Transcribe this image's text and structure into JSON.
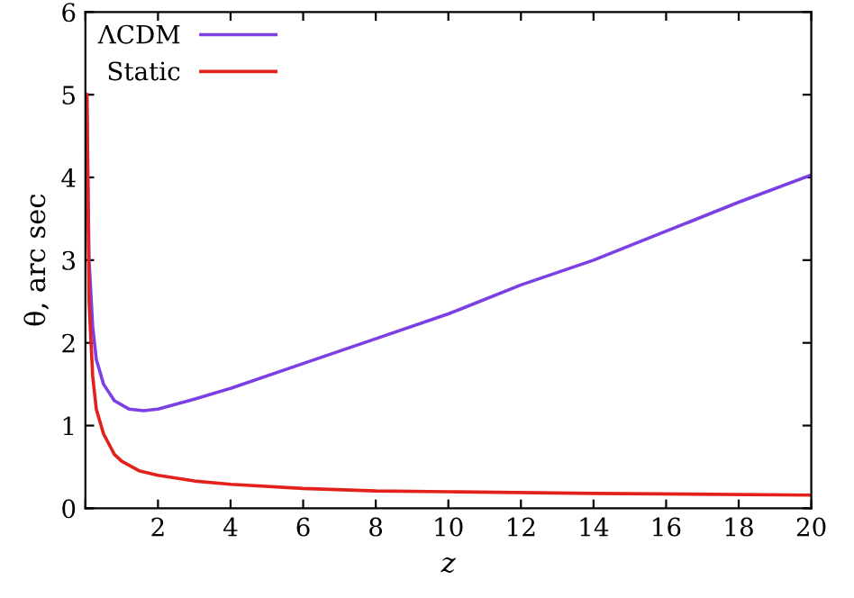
{
  "chart_data": {
    "type": "line",
    "xlabel": "z",
    "ylabel": "θ, arc sec",
    "xlim": [
      0,
      20
    ],
    "ylim": [
      0,
      6
    ],
    "xticks": [
      {
        "value": 0,
        "label": null
      },
      2,
      4,
      6,
      8,
      10,
      12,
      14,
      16,
      18,
      20
    ],
    "yticks": [
      0,
      1,
      2,
      3,
      4,
      5,
      6
    ],
    "legend": "top left",
    "grid": false,
    "marker": "none",
    "line_style": "solid",
    "series": [
      {
        "name": "ΛCDM",
        "color": "#7b3fe4",
        "x": [
          0.04,
          0.1,
          0.2,
          0.3,
          0.5,
          0.8,
          1.2,
          1.6,
          2,
          3,
          4,
          6,
          8,
          10,
          12,
          14,
          16,
          18,
          20
        ],
        "values": [
          5.0,
          3.0,
          2.2,
          1.8,
          1.5,
          1.3,
          1.2,
          1.18,
          1.2,
          1.32,
          1.45,
          1.75,
          2.05,
          2.35,
          2.7,
          3.0,
          3.35,
          3.7,
          4.03
        ]
      },
      {
        "name": "Static",
        "color": "#e3201b",
        "x": [
          0.04,
          0.1,
          0.2,
          0.3,
          0.5,
          0.8,
          1,
          1.5,
          2,
          3,
          4,
          6,
          8,
          10,
          14,
          20
        ],
        "values": [
          5.0,
          2.5,
          1.6,
          1.2,
          0.9,
          0.65,
          0.57,
          0.45,
          0.4,
          0.33,
          0.29,
          0.24,
          0.21,
          0.2,
          0.18,
          0.16
        ]
      }
    ]
  }
}
